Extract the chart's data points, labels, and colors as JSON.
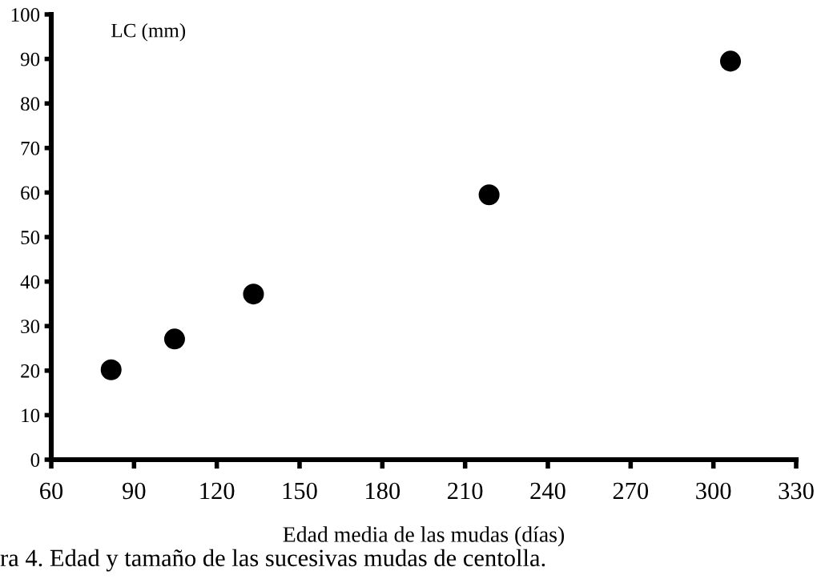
{
  "chart_data": {
    "type": "scatter",
    "xlabel": "Edad media de las mudas (días)",
    "ylabel": "LC (mm)",
    "annotations": [
      "ra 4. Edad y tamaño de las sucesivas mudas de centolla."
    ],
    "x": [
      81.7,
      104.7,
      133.3,
      218.7,
      306.2
    ],
    "series": [
      {
        "color": "#000000",
        "values": [
          20.2,
          27.1,
          37.2,
          59.5,
          89.5
        ]
      }
    ],
    "xlim": [
      60,
      330
    ],
    "xticks": [
      60,
      90,
      120,
      150,
      180,
      210,
      240,
      270,
      300,
      330
    ],
    "ylim": [
      0,
      100
    ],
    "yticks": [
      0,
      10,
      20,
      30,
      40,
      50,
      60,
      70,
      80,
      90,
      100
    ],
    "marker": "circle",
    "grid": false,
    "legend": false
  }
}
